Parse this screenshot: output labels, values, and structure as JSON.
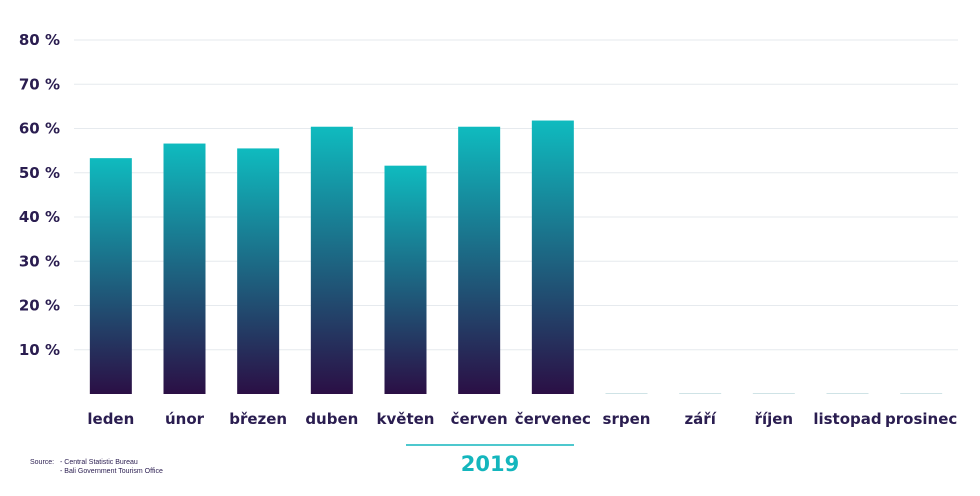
{
  "chart_data": {
    "type": "bar",
    "categories": [
      "leden",
      "únor",
      "březen",
      "duben",
      "květen",
      "červen",
      "červenec",
      "srpen",
      "září",
      "říjen",
      "listopad",
      "prosinec"
    ],
    "values": [
      53.3,
      56.6,
      55.5,
      60.4,
      51.6,
      60.4,
      61.8,
      null,
      null,
      null,
      null,
      null
    ],
    "ylim": [
      0,
      80
    ],
    "yticks": [
      10,
      20,
      30,
      40,
      50,
      60,
      70,
      80
    ],
    "ytick_labels": [
      "10 %",
      "20 %",
      "30 %",
      "40 %",
      "50 %",
      "60 %",
      "70 %",
      "80 %"
    ],
    "grid": true,
    "group_label": "2019",
    "colors": {
      "bar_top": "#0fbbbf",
      "bar_bottom": "#2b0f45",
      "text": "#2a1d50",
      "accent": "#14b6bd",
      "grid": "#e6eaee"
    }
  },
  "source": {
    "label": "Source:",
    "items": [
      "- Central Statistic Bureau",
      "- Bali Government Tourism Office"
    ]
  }
}
